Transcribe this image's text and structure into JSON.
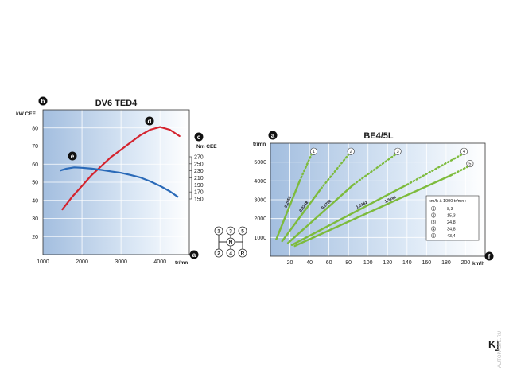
{
  "chart_data": [
    {
      "type": "line",
      "title": "DV6 TED4",
      "left_axis": {
        "label": "kW CEE",
        "badge": "b",
        "range": [
          10,
          90
        ],
        "ticks": [
          20,
          30,
          40,
          50,
          60,
          70,
          80
        ]
      },
      "right_axis": {
        "label": "Nm CEE",
        "badge": "c",
        "range": [
          150,
          270
        ],
        "ticks": [
          150,
          170,
          190,
          210,
          230,
          250,
          270
        ]
      },
      "x_axis": {
        "label": "tr/mn",
        "badge": "a",
        "range": [
          1000,
          4750
        ],
        "ticks": [
          1000,
          2000,
          3000,
          4000
        ]
      },
      "series": [
        {
          "badge": "d",
          "axis": "left",
          "color": "#d4232e",
          "x": [
            1500,
            1750,
            2000,
            2250,
            2500,
            2750,
            3000,
            3250,
            3500,
            3750,
            4000,
            4250,
            4500
          ],
          "y": [
            35,
            42,
            48,
            54,
            59,
            64,
            68,
            72,
            76,
            79,
            80.5,
            79,
            75.5
          ]
        },
        {
          "badge": "e",
          "axis": "left",
          "color": "#2a6ab8",
          "x": [
            1450,
            1600,
            1800,
            2000,
            2250,
            2500,
            2750,
            3000,
            3250,
            3500,
            3750,
            4000,
            4250,
            4450
          ],
          "y": [
            56.5,
            57.5,
            58.2,
            58,
            57.5,
            56.8,
            56,
            55.2,
            54,
            52.6,
            50.5,
            48,
            45,
            42
          ]
        }
      ]
    },
    {
      "type": "line",
      "title": "BE4/5L",
      "y_axis": {
        "label": "tr/mn",
        "badge": "a",
        "range": [
          0,
          6000
        ],
        "ticks": [
          1000,
          2000,
          3000,
          4000,
          5000
        ]
      },
      "x_axis": {
        "label": "km/h",
        "badge": "f",
        "range": [
          0,
          220
        ],
        "ticks": [
          20,
          40,
          60,
          80,
          100,
          120,
          140,
          160,
          180,
          200
        ]
      },
      "line_color": "#7dbb3c",
      "series": [
        {
          "gear": "1",
          "ratio": "0,2058",
          "solid": [
            [
              6,
              900
            ],
            [
              30,
              4000
            ]
          ],
          "dotted_to": [
            42,
            5400
          ]
        },
        {
          "gear": "2",
          "ratio": "0,3248",
          "solid": [
            [
              12,
              800
            ],
            [
              52,
              3600
            ]
          ],
          "dotted_to": [
            80,
            5400
          ]
        },
        {
          "gear": "3",
          "ratio": "0,5706",
          "solid": [
            [
              18,
              700
            ],
            [
              85,
              3800
            ]
          ],
          "dotted_to": [
            128,
            5400
          ]
        },
        {
          "gear": "4",
          "ratio": "1,2162",
          "solid": [
            [
              22,
              600
            ],
            [
              140,
              3800
            ]
          ],
          "dotted_to": [
            196,
            5400
          ]
        },
        {
          "gear": "5",
          "ratio": "1,5161",
          "solid": [
            [
              25,
              550
            ],
            [
              185,
              4300
            ]
          ],
          "dotted_to": [
            202,
            4750
          ]
        }
      ],
      "legend": {
        "heading": "km/h à 1000 tr/mn :",
        "items": [
          {
            "gear": "1",
            "value": "8,3"
          },
          {
            "gear": "2",
            "value": "15,3"
          },
          {
            "gear": "3",
            "value": "24,8"
          },
          {
            "gear": "4",
            "value": "34,8"
          },
          {
            "gear": "5",
            "value": "43,4"
          }
        ]
      }
    }
  ],
  "gear_pattern": {
    "top": [
      "1",
      "3",
      "5"
    ],
    "center": "N",
    "bottom": [
      "2",
      "4",
      "R"
    ]
  },
  "footer": {
    "letter": "K",
    "watermark": "AUTOPASTE.RU"
  }
}
